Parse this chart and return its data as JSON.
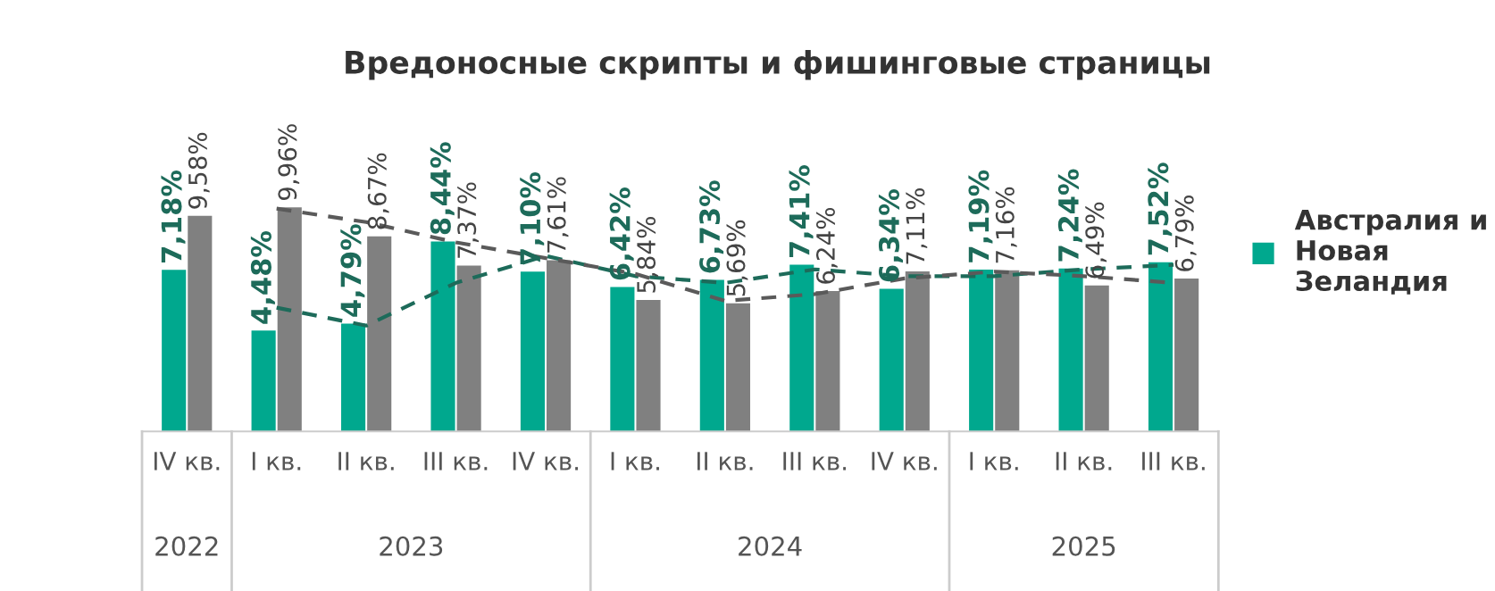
{
  "chart_data": {
    "type": "bar",
    "title": "Вредоносные скрипты и фишинговые страницы",
    "categories": [
      "IV кв.",
      "I кв.",
      "II кв.",
      "III кв.",
      "IV кв.",
      "I кв.",
      "II кв.",
      "III кв.",
      "IV кв.",
      "I кв.",
      "II кв.",
      "III кв."
    ],
    "series": [
      {
        "name": "Австралия и Новая Зеландия",
        "color": "#00a88e",
        "values": [
          7.18,
          4.48,
          4.79,
          8.44,
          7.1,
          6.42,
          6.73,
          7.41,
          6.34,
          7.19,
          7.24,
          7.52
        ],
        "value_labels": [
          "7,18%",
          "4,48%",
          "4,79%",
          "8,44%",
          "7,10%",
          "6,42%",
          "6,73%",
          "7,41%",
          "6,34%",
          "7,19%",
          "7,24%",
          "7,52%"
        ]
      },
      {
        "color": "#808080",
        "values": [
          9.58,
          9.96,
          8.67,
          7.37,
          7.61,
          5.84,
          5.69,
          6.24,
          7.11,
          7.16,
          6.49,
          6.79
        ],
        "value_labels": [
          "9,58%",
          "9,96%",
          "8,67%",
          "7,37%",
          "7,61%",
          "5,84%",
          "5,69%",
          "6,24%",
          "7,11%",
          "7,16%",
          "6,49%",
          "6,79%"
        ]
      },
      {
        "type": "line",
        "color": "#1d6b5a",
        "line_style": "dashed",
        "values": [
          null,
          5.5,
          4.7,
          6.6,
          7.8,
          6.9,
          6.6,
          7.2,
          6.9,
          6.9,
          7.2,
          7.4
        ]
      },
      {
        "type": "line",
        "color": "#5a5a5a",
        "line_style": "dashed",
        "values": [
          null,
          9.9,
          9.3,
          8.4,
          7.7,
          7.0,
          5.8,
          6.1,
          6.8,
          7.1,
          6.9,
          6.6
        ]
      }
    ],
    "annotations": [
      "2022",
      "2023",
      "2024",
      "2025"
    ],
    "legend": "right",
    "grid": false
  }
}
